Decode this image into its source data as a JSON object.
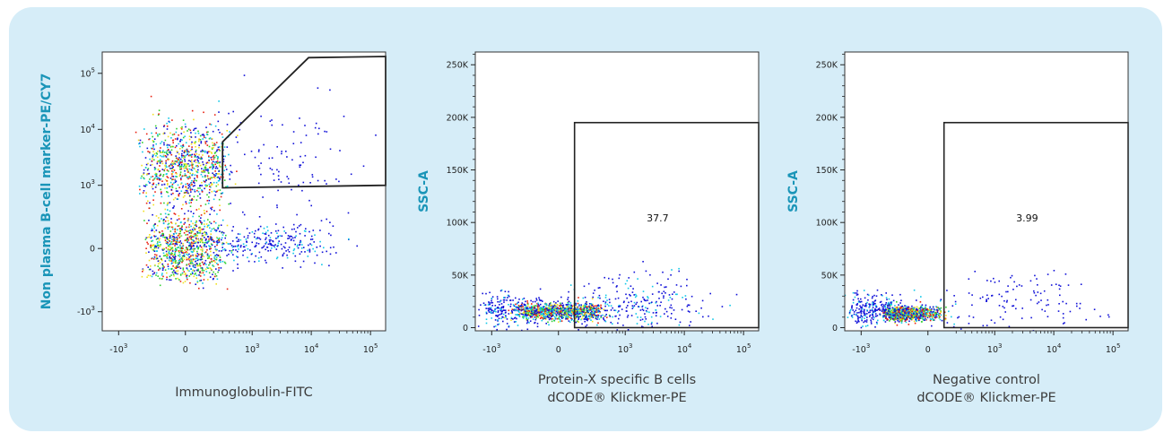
{
  "chart_data": [
    {
      "type": "scatter",
      "subtype": "flow-cytometry-density-dot-plot",
      "xlabel": "Immunoglobulin-FITC",
      "ylabel": "Non plasma B-cell marker-PE/CY7",
      "x_scale": "biexponential",
      "y_scale": "biexponential",
      "x_ticks": [
        {
          "value": -1000,
          "base": "-10",
          "exp": "3"
        },
        {
          "value": 0,
          "base": "0",
          "exp": ""
        },
        {
          "value": 1000,
          "base": "10",
          "exp": "3"
        },
        {
          "value": 10000,
          "base": "10",
          "exp": "4"
        },
        {
          "value": 100000,
          "base": "10",
          "exp": "5"
        }
      ],
      "y_ticks": [
        {
          "value": -1000,
          "base": "-10",
          "exp": "3"
        },
        {
          "value": 0,
          "base": "0",
          "exp": ""
        },
        {
          "value": 1000,
          "base": "10",
          "exp": "3"
        },
        {
          "value": 10000,
          "base": "10",
          "exp": "4"
        },
        {
          "value": 100000,
          "base": "10",
          "exp": "5"
        }
      ],
      "xlim": [
        -1900,
        180000
      ],
      "ylim": [
        -2200,
        240000
      ],
      "gate": {
        "shape": "polygon",
        "vertices": [
          [
            300,
            6000
          ],
          [
            300,
            900
          ],
          [
            180000,
            1000
          ],
          [
            180000,
            200000
          ],
          [
            9000,
            190000
          ]
        ]
      },
      "populations": [
        {
          "x": 0,
          "y": 2200,
          "spread_x": 180,
          "spread_y": 0.42,
          "weight": "dense"
        },
        {
          "x": 0,
          "y": 0,
          "spread_x": 150,
          "spread_y": 120,
          "weight": "dense"
        },
        {
          "x": 2000,
          "y": 30,
          "spread_x": 0.55,
          "spread_y": 60,
          "weight": "moderate"
        },
        {
          "x": 3000,
          "y": 3000,
          "spread_x": 0.7,
          "spread_y": 0.5,
          "weight": "sparse"
        }
      ]
    },
    {
      "type": "scatter",
      "subtype": "flow-cytometry-density-dot-plot",
      "xlabel": "Protein-X specific B cells",
      "xlabel_line2": "dCODE® Klickmer-PE",
      "ylabel": "SSC-A",
      "x_scale": "biexponential",
      "y_scale": "linear",
      "x_ticks": [
        {
          "value": -1000,
          "base": "-10",
          "exp": "3"
        },
        {
          "value": 0,
          "base": "0",
          "exp": ""
        },
        {
          "value": 1000,
          "base": "10",
          "exp": "3"
        },
        {
          "value": 10000,
          "base": "10",
          "exp": "4"
        },
        {
          "value": 100000,
          "base": "10",
          "exp": "5"
        }
      ],
      "y_ticks": [
        {
          "value": 0,
          "label": "0"
        },
        {
          "value": 50000,
          "label": "50K"
        },
        {
          "value": 100000,
          "label": "100K"
        },
        {
          "value": 150000,
          "label": "150K"
        },
        {
          "value": 200000,
          "label": "200K"
        },
        {
          "value": 250000,
          "label": "250K"
        }
      ],
      "xlim": [
        -1900,
        180000
      ],
      "ylim": [
        -3000,
        262144
      ],
      "gate": {
        "shape": "rectangle",
        "x_range": [
          100,
          180000
        ],
        "y_range": [
          0,
          195000
        ],
        "label": "37.7"
      },
      "populations": [
        {
          "x": 0,
          "y": 16000,
          "spread_x": 170,
          "spread_y": 4000,
          "weight": "dense"
        },
        {
          "x": -500,
          "y": 18000,
          "spread_x": 500,
          "spread_y": 8000,
          "weight": "moderate"
        },
        {
          "x": 1500,
          "y": 22000,
          "spread_x": 0.6,
          "spread_y": 14000,
          "weight": "moderate"
        }
      ]
    },
    {
      "type": "scatter",
      "subtype": "flow-cytometry-density-dot-plot",
      "xlabel": "Negative control",
      "xlabel_line2": "dCODE® Klickmer-PE",
      "ylabel": "SSC-A",
      "x_scale": "biexponential",
      "y_scale": "linear",
      "x_ticks": [
        {
          "value": -1000,
          "base": "-10",
          "exp": "3"
        },
        {
          "value": 0,
          "base": "0",
          "exp": ""
        },
        {
          "value": 1000,
          "base": "10",
          "exp": "3"
        },
        {
          "value": 10000,
          "base": "10",
          "exp": "4"
        },
        {
          "value": 100000,
          "base": "10",
          "exp": "5"
        }
      ],
      "y_ticks": [
        {
          "value": 0,
          "label": "0"
        },
        {
          "value": 50000,
          "label": "50K"
        },
        {
          "value": 100000,
          "label": "100K"
        },
        {
          "value": 150000,
          "label": "150K"
        },
        {
          "value": 200000,
          "label": "200K"
        },
        {
          "value": 250000,
          "label": "250K"
        }
      ],
      "xlim": [
        -1900,
        180000
      ],
      "ylim": [
        -3000,
        262144
      ],
      "gate": {
        "shape": "rectangle",
        "x_range": [
          100,
          180000
        ],
        "y_range": [
          0,
          195000
        ],
        "label": "3.99"
      },
      "populations": [
        {
          "x": -150,
          "y": 14000,
          "spread_x": 120,
          "spread_y": 3500,
          "weight": "dense"
        },
        {
          "x": -700,
          "y": 18000,
          "spread_x": 450,
          "spread_y": 7000,
          "weight": "moderate"
        },
        {
          "x": 3000,
          "y": 25000,
          "spread_x": 0.7,
          "spread_y": 14000,
          "weight": "sparse"
        }
      ]
    }
  ],
  "colors": {
    "panel_background": "#d6edf8",
    "axis_label": "#1a95b8",
    "dot_low": "#1010d8",
    "dot_mid": "#10c8e8",
    "dot_high": "#30d030",
    "dot_peak": "#f0e020",
    "dot_max": "#e82010"
  }
}
